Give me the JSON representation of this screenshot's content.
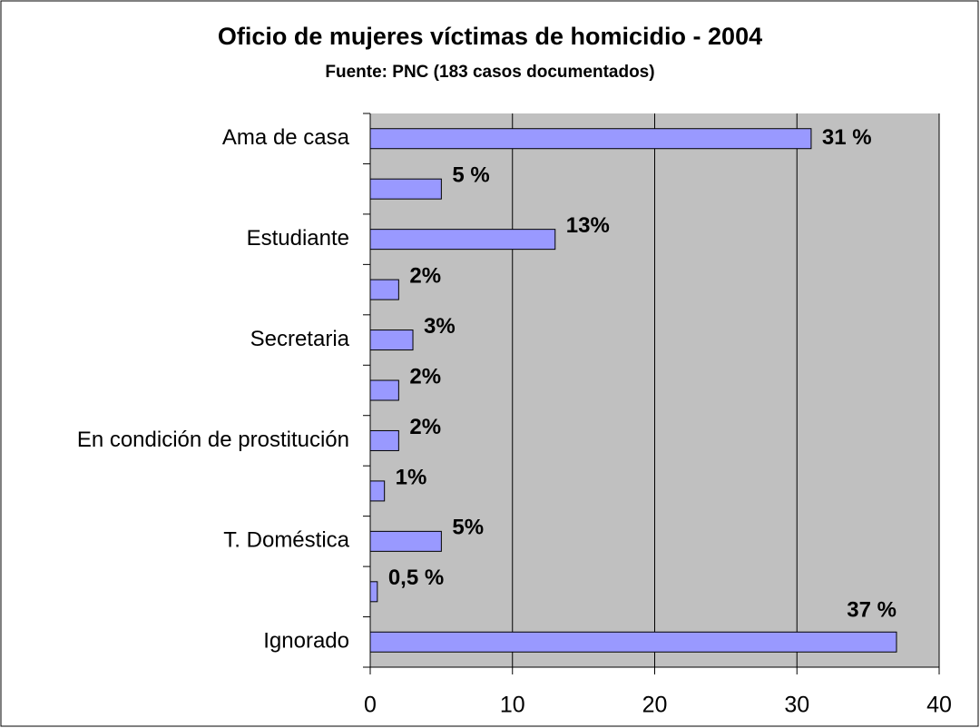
{
  "chart_data": {
    "type": "hbar",
    "title": "Oficio de mujeres víctimas de homicidio - 2004",
    "subtitle": "Fuente: PNC (183 casos documentados)",
    "categories": [
      "Ama de casa",
      null,
      "Estudiante",
      null,
      "Secretaria",
      null,
      "En condición de prostitución",
      null,
      "T. Doméstica",
      null,
      "Ignorado"
    ],
    "values": [
      31,
      5,
      13,
      2,
      3,
      2,
      2,
      1,
      5,
      0.5,
      37
    ],
    "value_labels": [
      "31 %",
      "5 %",
      "13%",
      "2%",
      "3%",
      "2%",
      "2%",
      "1%",
      "5%",
      "0,5 %",
      "37 %"
    ],
    "color": "#9999ff",
    "xlim": [
      0,
      40
    ],
    "xticks": [
      0,
      10,
      20,
      30,
      40
    ],
    "grid": true
  }
}
